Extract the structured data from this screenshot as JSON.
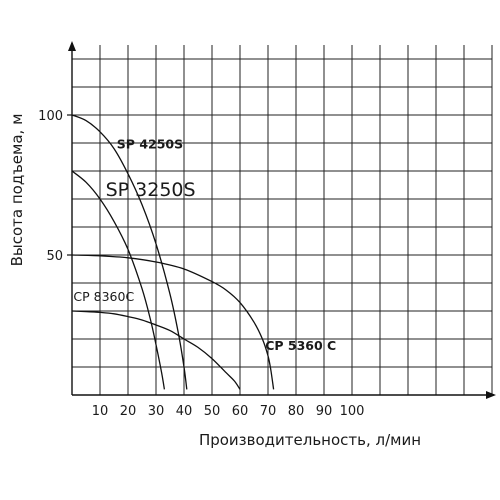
{
  "chart_data": {
    "type": "line",
    "title": "",
    "xlabel": "Производительность, л/мин",
    "ylabel": "Высота подъема, м",
    "xlim": [
      0,
      150
    ],
    "ylim": [
      0,
      125
    ],
    "x_ticks": [
      10,
      20,
      30,
      40,
      50,
      60,
      70,
      80,
      90,
      100
    ],
    "x_tick_labels": [
      "10",
      "20",
      "30",
      "40",
      "50",
      "60",
      "70",
      "80",
      "90",
      "100"
    ],
    "y_ticks": [
      50,
      100
    ],
    "y_tick_labels": [
      "50",
      "100"
    ],
    "grid": true,
    "legend": "none",
    "series": [
      {
        "name": "SP 4250S",
        "x": [
          0,
          5,
          10,
          15,
          20,
          25,
          30,
          35,
          38,
          40,
          41
        ],
        "y": [
          100,
          98,
          94,
          88,
          79,
          68,
          54,
          36,
          22,
          10,
          2
        ]
      },
      {
        "name": "SP 3250S",
        "x": [
          0,
          5,
          10,
          15,
          20,
          25,
          28,
          30,
          32,
          33
        ],
        "y": [
          80,
          76,
          70,
          62,
          52,
          38,
          27,
          18,
          8,
          2
        ]
      },
      {
        "name": "CP 8360C",
        "x": [
          0,
          5,
          10,
          15,
          20,
          25,
          30,
          35,
          40,
          45,
          50,
          55,
          58,
          60
        ],
        "y": [
          30,
          29.8,
          29.5,
          29,
          28,
          26.8,
          25,
          23,
          20,
          17,
          13,
          8,
          5,
          2
        ]
      },
      {
        "name": "CP 5360 C",
        "x": [
          0,
          10,
          20,
          30,
          40,
          50,
          55,
          60,
          65,
          68,
          70,
          71,
          72
        ],
        "y": [
          50,
          49.7,
          49,
          47.5,
          45,
          40.5,
          37.5,
          33,
          26,
          20,
          14,
          9,
          2
        ]
      }
    ],
    "curve_labels": [
      {
        "text": "SP 4250S",
        "series": "SP 4250S",
        "x": 16,
        "y": 88,
        "size": "small",
        "weight": "bold"
      },
      {
        "text": "SP 3250S",
        "series": "SP 3250S",
        "x": 12,
        "y": 71,
        "size": "large",
        "weight": "normal"
      },
      {
        "text": "CP 8360C",
        "series": "CP 8360C",
        "x": 0.5,
        "y": 33.5,
        "size": "small",
        "weight": "normal"
      },
      {
        "text": "CP 5360 C",
        "series": "CP 5360 C",
        "x": 69,
        "y": 16,
        "size": "small",
        "weight": "bold"
      }
    ]
  }
}
